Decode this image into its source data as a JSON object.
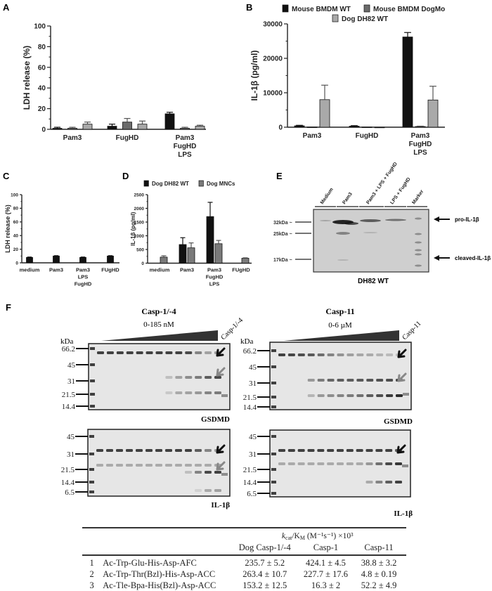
{
  "panel_labels": {
    "a": "A",
    "b": "B",
    "c": "C",
    "d": "D",
    "e": "E",
    "f": "F"
  },
  "chart_data": [
    {
      "id": "A",
      "type": "bar",
      "title": "",
      "xlabel": "",
      "ylabel": "LDH release (%)",
      "ylim": [
        0,
        100
      ],
      "yticks": [
        0,
        20,
        40,
        60,
        80,
        100
      ],
      "categories": [
        [
          "Pam3"
        ],
        [
          "FugHD"
        ],
        [
          "Pam3",
          "FugHD",
          "LPS"
        ]
      ],
      "series": [
        {
          "name": "Mouse BMDM WT",
          "color": "#111111",
          "values": [
            1,
            3,
            15
          ],
          "errors": [
            1,
            2,
            1.5
          ]
        },
        {
          "name": "Mouse BMDM DogMo",
          "color": "#6b6b6b",
          "values": [
            1,
            7,
            1
          ],
          "errors": [
            1,
            3.5,
            1
          ]
        },
        {
          "name": "Dog DH82 WT",
          "color": "#a9a9a9",
          "values": [
            5,
            5,
            3
          ],
          "errors": [
            2,
            3,
            1
          ]
        }
      ],
      "legend": "none"
    },
    {
      "id": "B",
      "type": "bar",
      "title": "",
      "xlabel": "",
      "ylabel": "IL-1β (pg/ml)",
      "ylim": [
        0,
        30000
      ],
      "yticks": [
        0,
        10000,
        20000,
        30000
      ],
      "categories": [
        [
          "Pam3"
        ],
        [
          "FugHD"
        ],
        [
          "Pam3",
          "FugHD",
          "LPS"
        ]
      ],
      "series": [
        {
          "name": "Mouse BMDM WT",
          "color": "#111111",
          "values": [
            400,
            300,
            26200
          ],
          "errors": [
            150,
            150,
            1300
          ]
        },
        {
          "name": "Mouse BMDM DogMo",
          "color": "#6b6b6b",
          "values": [
            50,
            50,
            200
          ],
          "errors": [
            0,
            0,
            100
          ]
        },
        {
          "name": "Dog DH82 WT",
          "color": "#a9a9a9",
          "values": [
            8000,
            0,
            7900
          ],
          "errors": [
            4200,
            0,
            4000
          ]
        }
      ],
      "legend": "top"
    },
    {
      "id": "C",
      "type": "bar",
      "title": "",
      "xlabel": "",
      "ylabel": "LDH release (%)",
      "ylim": [
        0,
        100
      ],
      "yticks": [
        0,
        20,
        40,
        60,
        80,
        100
      ],
      "categories": [
        [
          "medium"
        ],
        [
          "Pam3"
        ],
        [
          "Pam3",
          "LPS",
          "FugHD"
        ],
        [
          "FUgHD"
        ]
      ],
      "series": [
        {
          "name": "",
          "color": "#111111",
          "values": [
            8,
            10,
            8,
            10
          ],
          "errors": [
            0.5,
            0.5,
            0.5,
            0.5
          ]
        }
      ],
      "legend": "none"
    },
    {
      "id": "D",
      "type": "bar",
      "title": "",
      "xlabel": "",
      "ylabel": "IL-1β (pg/ml)",
      "ylim": [
        0,
        2500
      ],
      "yticks": [
        0,
        500,
        1000,
        1500,
        2000,
        2500
      ],
      "categories": [
        [
          "medium"
        ],
        [
          "Pam3"
        ],
        [
          "Pam3",
          "FugHD",
          "LPS"
        ],
        [
          "FUgHD"
        ]
      ],
      "series": [
        {
          "name": "Dog DH82 WT",
          "color": "#111111",
          "values": [
            null,
            680,
            1700,
            null
          ],
          "errors": [
            0,
            250,
            520,
            0
          ]
        },
        {
          "name": "Dog MNCs",
          "color": "#7a7a7a",
          "values": [
            220,
            560,
            710,
            180
          ],
          "errors": [
            50,
            180,
            120,
            15
          ]
        }
      ],
      "legend": "top"
    }
  ],
  "blot_e": {
    "lanes": [
      "Medium",
      "Pam3",
      "Pam3 + LPS + FugHD",
      "LPS + FugHD",
      "Marker"
    ],
    "markers": [
      "32kDa ~",
      "25kDa ~",
      "17kDa ~"
    ],
    "annotations": {
      "pro": "pro-IL-1β",
      "cleaved": "cleaved-IL-1β"
    },
    "caption": "DH82 WT"
  },
  "gels_f": {
    "left": {
      "title": "Casp-1/-4",
      "range": "0-185 nM",
      "lane_label": "Casp-1/-4"
    },
    "right": {
      "title": "Casp-11",
      "range": "0-6 µM",
      "lane_label": "Casp-11"
    },
    "kda": "kDa",
    "top_markers": [
      "66.2",
      "45",
      "31",
      "21.5",
      "14.4"
    ],
    "bottom_markers": [
      "45",
      "31",
      "21.5",
      "14.4",
      "6.5"
    ],
    "top_protein": "GSDMD",
    "bottom_protein": "IL-1β"
  },
  "table": {
    "kcat": {
      "k": "k",
      "cat": "cat",
      "K": "/K",
      "M": "M",
      "units": " (M⁻¹s⁻¹) ×10³"
    },
    "columns": [
      "Dog Casp-1/-4",
      "Casp-1",
      "Casp-11"
    ],
    "rows": [
      {
        "n": "1",
        "substrate": "Ac-Trp-Glu-His-Asp-AFC",
        "values": [
          "235.7 ± 5.2",
          "424.1 ± 4.5",
          "38.8 ± 3.2"
        ]
      },
      {
        "n": "2",
        "substrate": "Ac-Trp-Thr(Bzl)-His-Asp-ACC",
        "values": [
          "263.4 ± 10.7",
          "227.7 ± 17.6",
          "4.8 ± 0.19"
        ]
      },
      {
        "n": "3",
        "substrate": "Ac-Tle-Bpa-His(Bzl)-Asp-ACC",
        "values": [
          "153.2 ± 12.5",
          "16.3 ± 2",
          "52.2 ± 4.9"
        ]
      }
    ]
  }
}
